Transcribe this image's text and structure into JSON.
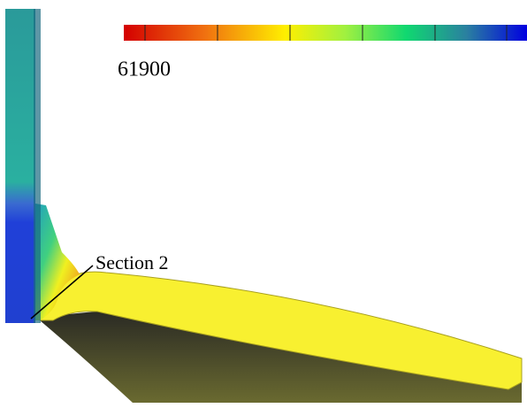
{
  "colorbar": {
    "label": "61900"
  },
  "annotation": "Section 2"
}
